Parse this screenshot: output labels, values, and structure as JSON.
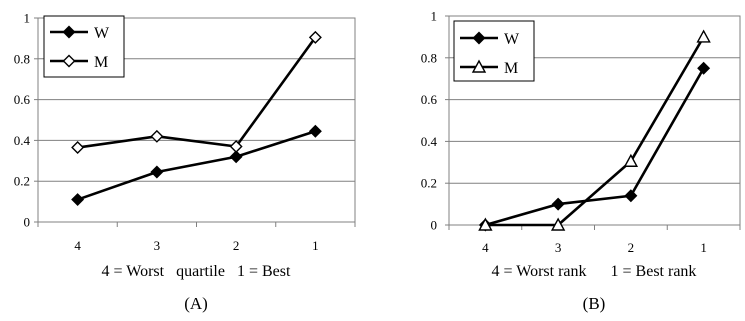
{
  "chart_data": [
    {
      "type": "line",
      "categories": [
        "4",
        "3",
        "2",
        "1"
      ],
      "series": [
        {
          "name": "W",
          "values": [
            0.11,
            0.245,
            0.32,
            0.445
          ],
          "marker": "filled-diamond"
        },
        {
          "name": "M",
          "values": [
            0.365,
            0.42,
            0.37,
            0.905
          ],
          "marker": "open-diamond"
        }
      ],
      "xlabel": "4 = Worst   quartile   1 = Best",
      "caption": "(A)",
      "ylim": [
        0,
        1
      ],
      "yticks": [
        "0",
        "0.2",
        "0.4",
        "0.6",
        "0.8",
        "1"
      ],
      "grid": true,
      "legend_position": "top-left"
    },
    {
      "type": "line",
      "categories": [
        "4",
        "3",
        "2",
        "1"
      ],
      "series": [
        {
          "name": "W",
          "values": [
            0,
            0.1,
            0.14,
            0.75
          ],
          "marker": "filled-diamond"
        },
        {
          "name": "M",
          "values": [
            0,
            0,
            0.305,
            0.9
          ],
          "marker": "open-triangle"
        }
      ],
      "xlabel": "4 = Worst rank      1 = Best rank",
      "caption": "(B)",
      "ylim": [
        0,
        1
      ],
      "yticks": [
        "0",
        "0.2",
        "0.4",
        "0.6",
        "0.8",
        "1"
      ],
      "grid": true,
      "legend_position": "top-left"
    }
  ]
}
